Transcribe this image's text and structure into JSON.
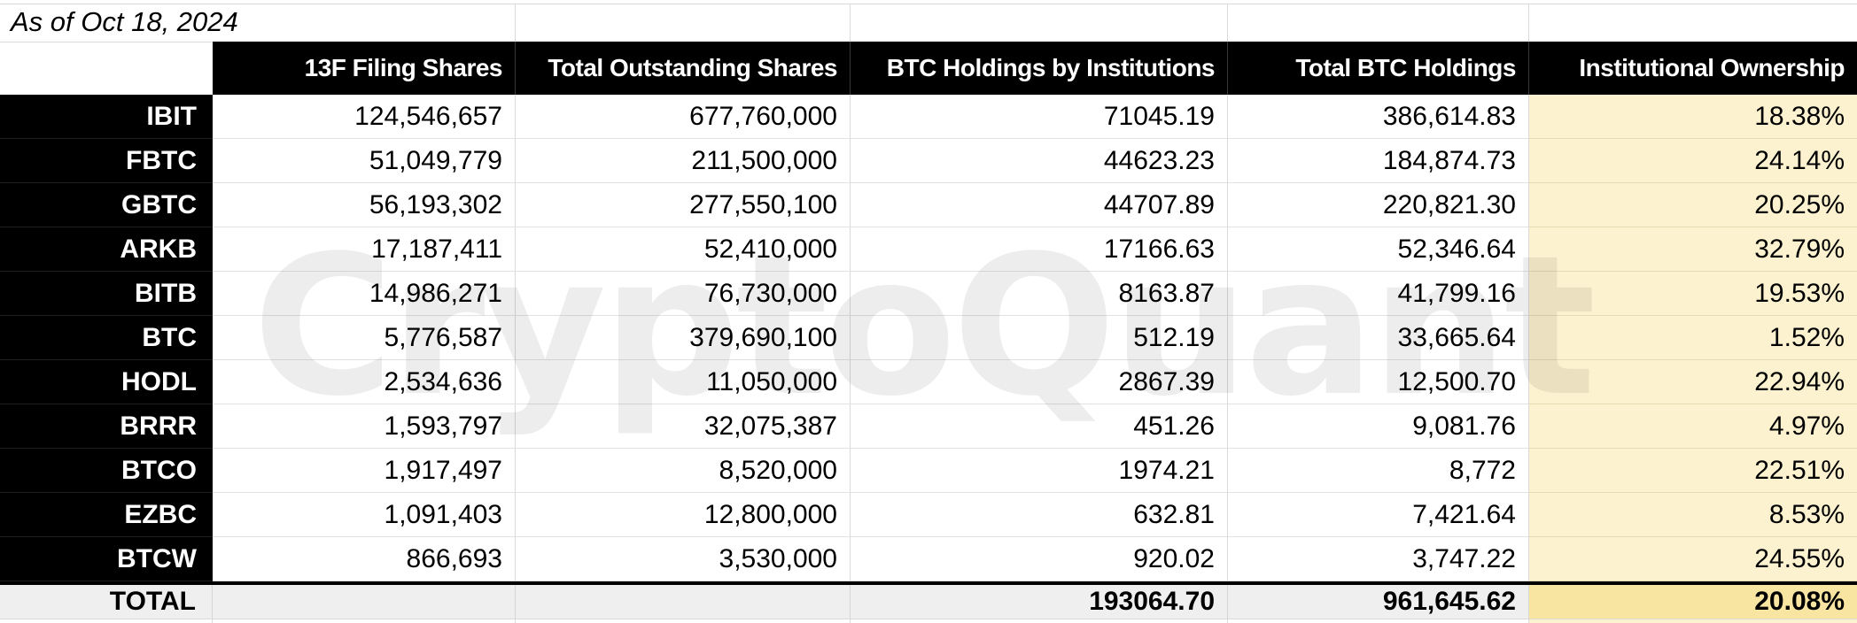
{
  "meta": {
    "as_of": "As of Oct 18, 2024"
  },
  "watermark": "CryptoQuant",
  "colors": {
    "header_bg": "#000000",
    "header_text": "#ffffff",
    "highlight_column_bg": "#fdf2cf",
    "total_row_bg": "#efefef",
    "total_highlight_bg": "#f8e5a2",
    "gridline": "#dadada"
  },
  "table": {
    "columns": [
      "13F Filing Shares",
      "Total Outstanding Shares",
      "BTC Holdings by Institutions",
      "Total BTC Holdings",
      "Institutional Ownership"
    ],
    "rows": [
      {
        "ticker": "IBIT",
        "filing": "124,546,657",
        "outstanding": "677,760,000",
        "btc_inst": "71045.19",
        "total_btc": "386,614.83",
        "ownership": "18.38%"
      },
      {
        "ticker": "FBTC",
        "filing": "51,049,779",
        "outstanding": "211,500,000",
        "btc_inst": "44623.23",
        "total_btc": "184,874.73",
        "ownership": "24.14%"
      },
      {
        "ticker": "GBTC",
        "filing": "56,193,302",
        "outstanding": "277,550,100",
        "btc_inst": "44707.89",
        "total_btc": "220,821.30",
        "ownership": "20.25%"
      },
      {
        "ticker": "ARKB",
        "filing": "17,187,411",
        "outstanding": "52,410,000",
        "btc_inst": "17166.63",
        "total_btc": "52,346.64",
        "ownership": "32.79%"
      },
      {
        "ticker": "BITB",
        "filing": "14,986,271",
        "outstanding": "76,730,000",
        "btc_inst": "8163.87",
        "total_btc": "41,799.16",
        "ownership": "19.53%"
      },
      {
        "ticker": "BTC",
        "filing": "5,776,587",
        "outstanding": "379,690,100",
        "btc_inst": "512.19",
        "total_btc": "33,665.64",
        "ownership": "1.52%"
      },
      {
        "ticker": "HODL",
        "filing": "2,534,636",
        "outstanding": "11,050,000",
        "btc_inst": "2867.39",
        "total_btc": "12,500.70",
        "ownership": "22.94%"
      },
      {
        "ticker": "BRRR",
        "filing": "1,593,797",
        "outstanding": "32,075,387",
        "btc_inst": "451.26",
        "total_btc": "9,081.76",
        "ownership": "4.97%"
      },
      {
        "ticker": "BTCO",
        "filing": "1,917,497",
        "outstanding": "8,520,000",
        "btc_inst": "1974.21",
        "total_btc": "8,772",
        "ownership": "22.51%"
      },
      {
        "ticker": "EZBC",
        "filing": "1,091,403",
        "outstanding": "12,800,000",
        "btc_inst": "632.81",
        "total_btc": "7,421.64",
        "ownership": "8.53%"
      },
      {
        "ticker": "BTCW",
        "filing": "866,693",
        "outstanding": "3,530,000",
        "btc_inst": "920.02",
        "total_btc": "3,747.22",
        "ownership": "24.55%"
      }
    ],
    "total": {
      "label": "TOTAL",
      "filing": "",
      "outstanding": "",
      "btc_inst": "193064.70",
      "total_btc": "961,645.62",
      "ownership": "20.08%"
    }
  }
}
